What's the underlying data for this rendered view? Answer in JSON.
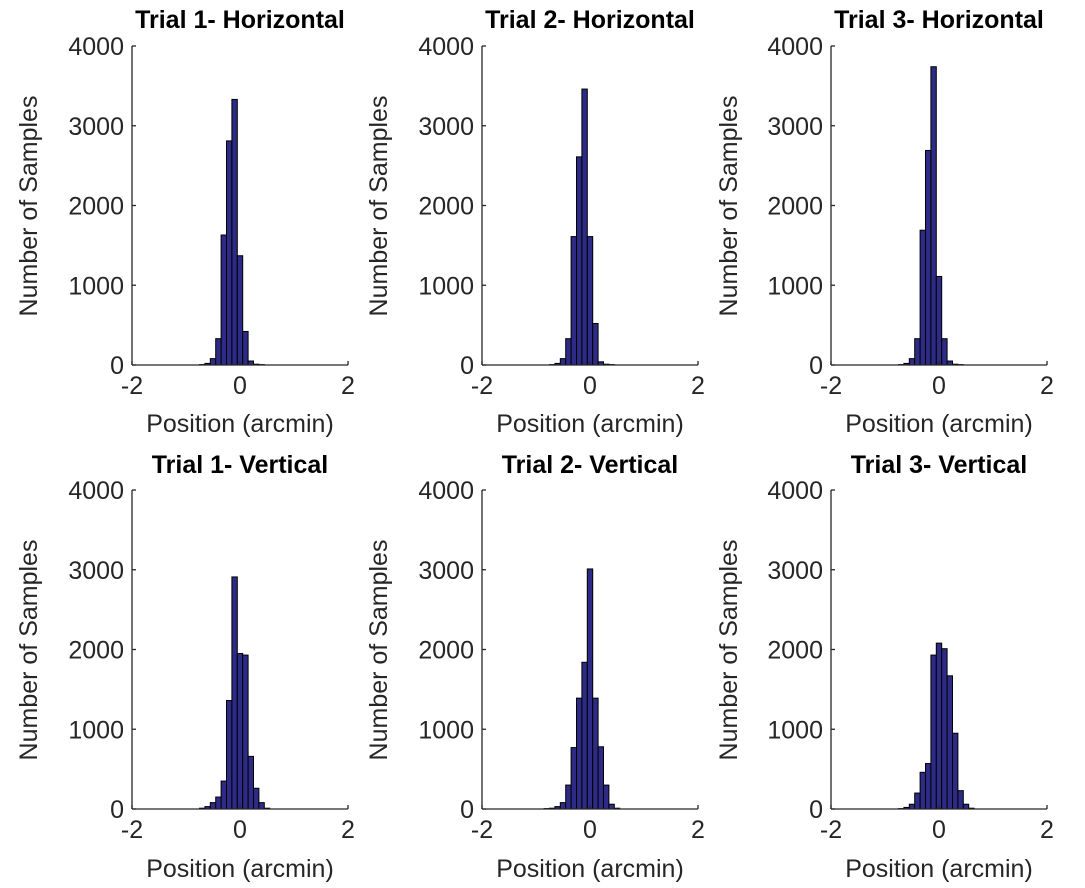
{
  "chart_data": [
    {
      "type": "bar",
      "title": "Trial 1- Horizontal",
      "xlabel": "Position (arcmin)",
      "ylabel": "Number of Samples",
      "xlim": [
        -2,
        2
      ],
      "ylim": [
        0,
        4000
      ],
      "xticks": [
        "-2",
        "0",
        "2"
      ],
      "yticks": [
        "0",
        "1000",
        "2000",
        "3000",
        "4000"
      ],
      "bin_width": 0.1,
      "bin_centers": [
        -1.0,
        -0.9,
        -0.8,
        -0.7,
        -0.6,
        -0.5,
        -0.4,
        -0.3,
        -0.2,
        -0.1,
        0.0,
        0.1,
        0.2,
        0.3,
        0.4,
        0.5,
        0.6,
        0.7,
        0.8,
        0.9,
        1.0
      ],
      "values": [
        0,
        0,
        0,
        5,
        20,
        80,
        330,
        1630,
        2810,
        3330,
        1370,
        420,
        50,
        10,
        5,
        0,
        0,
        0,
        0,
        0,
        0
      ]
    },
    {
      "type": "bar",
      "title": "Trial 2- Horizontal",
      "xlabel": "Position (arcmin)",
      "ylabel": "Number of Samples",
      "xlim": [
        -2,
        2
      ],
      "ylim": [
        0,
        4000
      ],
      "xticks": [
        "-2",
        "0",
        "2"
      ],
      "yticks": [
        "0",
        "1000",
        "2000",
        "3000",
        "4000"
      ],
      "bin_width": 0.1,
      "bin_centers": [
        -1.0,
        -0.9,
        -0.8,
        -0.7,
        -0.6,
        -0.5,
        -0.4,
        -0.3,
        -0.2,
        -0.1,
        0.0,
        0.1,
        0.2,
        0.3,
        0.4,
        0.5,
        0.6,
        0.7,
        0.8,
        0.9,
        1.0
      ],
      "values": [
        0,
        0,
        0,
        5,
        20,
        80,
        330,
        1610,
        2610,
        3460,
        1610,
        520,
        40,
        10,
        5,
        0,
        0,
        0,
        0,
        0,
        0
      ]
    },
    {
      "type": "bar",
      "title": "Trial 3- Horizontal",
      "xlabel": "Position (arcmin)",
      "ylabel": "Number of Samples",
      "xlim": [
        -2,
        2
      ],
      "ylim": [
        0,
        4000
      ],
      "xticks": [
        "-2",
        "0",
        "2"
      ],
      "yticks": [
        "0",
        "1000",
        "2000",
        "3000",
        "4000"
      ],
      "bin_width": 0.1,
      "bin_centers": [
        -1.0,
        -0.9,
        -0.8,
        -0.7,
        -0.6,
        -0.5,
        -0.4,
        -0.3,
        -0.2,
        -0.1,
        0.0,
        0.1,
        0.2,
        0.3,
        0.4,
        0.5,
        0.6,
        0.7,
        0.8,
        0.9,
        1.0
      ],
      "values": [
        0,
        0,
        0,
        5,
        20,
        80,
        330,
        1690,
        2690,
        3740,
        1110,
        330,
        50,
        10,
        5,
        0,
        0,
        0,
        0,
        0,
        0
      ]
    },
    {
      "type": "bar",
      "title": "Trial 1- Vertical",
      "xlabel": "Position (arcmin)",
      "ylabel": "Number of Samples",
      "xlim": [
        -2,
        2
      ],
      "ylim": [
        0,
        4000
      ],
      "xticks": [
        "-2",
        "0",
        "2"
      ],
      "yticks": [
        "0",
        "1000",
        "2000",
        "3000",
        "4000"
      ],
      "bin_width": 0.1,
      "bin_centers": [
        -1.0,
        -0.9,
        -0.8,
        -0.7,
        -0.6,
        -0.5,
        -0.4,
        -0.3,
        -0.2,
        -0.1,
        0.0,
        0.1,
        0.2,
        0.3,
        0.4,
        0.5,
        0.6,
        0.7,
        0.8,
        0.9,
        1.0
      ],
      "values": [
        0,
        0,
        0,
        10,
        30,
        80,
        150,
        350,
        1360,
        2910,
        1950,
        1930,
        660,
        260,
        80,
        10,
        0,
        0,
        0,
        0,
        0
      ]
    },
    {
      "type": "bar",
      "title": "Trial 2- Vertical",
      "xlabel": "Position (arcmin)",
      "ylabel": "Number of Samples",
      "xlim": [
        -2,
        2
      ],
      "ylim": [
        0,
        4000
      ],
      "xticks": [
        "-2",
        "0",
        "2"
      ],
      "yticks": [
        "0",
        "1000",
        "2000",
        "3000",
        "4000"
      ],
      "bin_width": 0.1,
      "bin_centers": [
        -1.0,
        -0.9,
        -0.8,
        -0.7,
        -0.6,
        -0.5,
        -0.4,
        -0.3,
        -0.2,
        -0.1,
        0.0,
        0.1,
        0.2,
        0.3,
        0.4,
        0.5,
        0.6,
        0.7,
        0.8,
        0.9,
        1.0
      ],
      "values": [
        0,
        0,
        5,
        10,
        30,
        80,
        300,
        770,
        1390,
        1840,
        3010,
        1390,
        780,
        300,
        60,
        10,
        0,
        0,
        0,
        0,
        0
      ]
    },
    {
      "type": "bar",
      "title": "Trial 3- Vertical",
      "xlabel": "Position (arcmin)",
      "ylabel": "Number of Samples",
      "xlim": [
        -2,
        2
      ],
      "ylim": [
        0,
        4000
      ],
      "xticks": [
        "-2",
        "0",
        "2"
      ],
      "yticks": [
        "0",
        "1000",
        "2000",
        "3000",
        "4000"
      ],
      "bin_width": 0.1,
      "bin_centers": [
        -1.0,
        -0.9,
        -0.8,
        -0.7,
        -0.6,
        -0.5,
        -0.4,
        -0.3,
        -0.2,
        -0.1,
        0.0,
        0.1,
        0.2,
        0.3,
        0.4,
        0.5,
        0.6,
        0.7,
        0.8,
        0.9,
        1.0
      ],
      "values": [
        0,
        0,
        0,
        5,
        20,
        60,
        200,
        460,
        570,
        1930,
        2080,
        2010,
        1670,
        950,
        230,
        60,
        10,
        0,
        0,
        0,
        0
      ]
    }
  ],
  "colors": {
    "bar_fill": "#2d2b85",
    "bar_edge": "#000000",
    "axis": "#262626"
  }
}
